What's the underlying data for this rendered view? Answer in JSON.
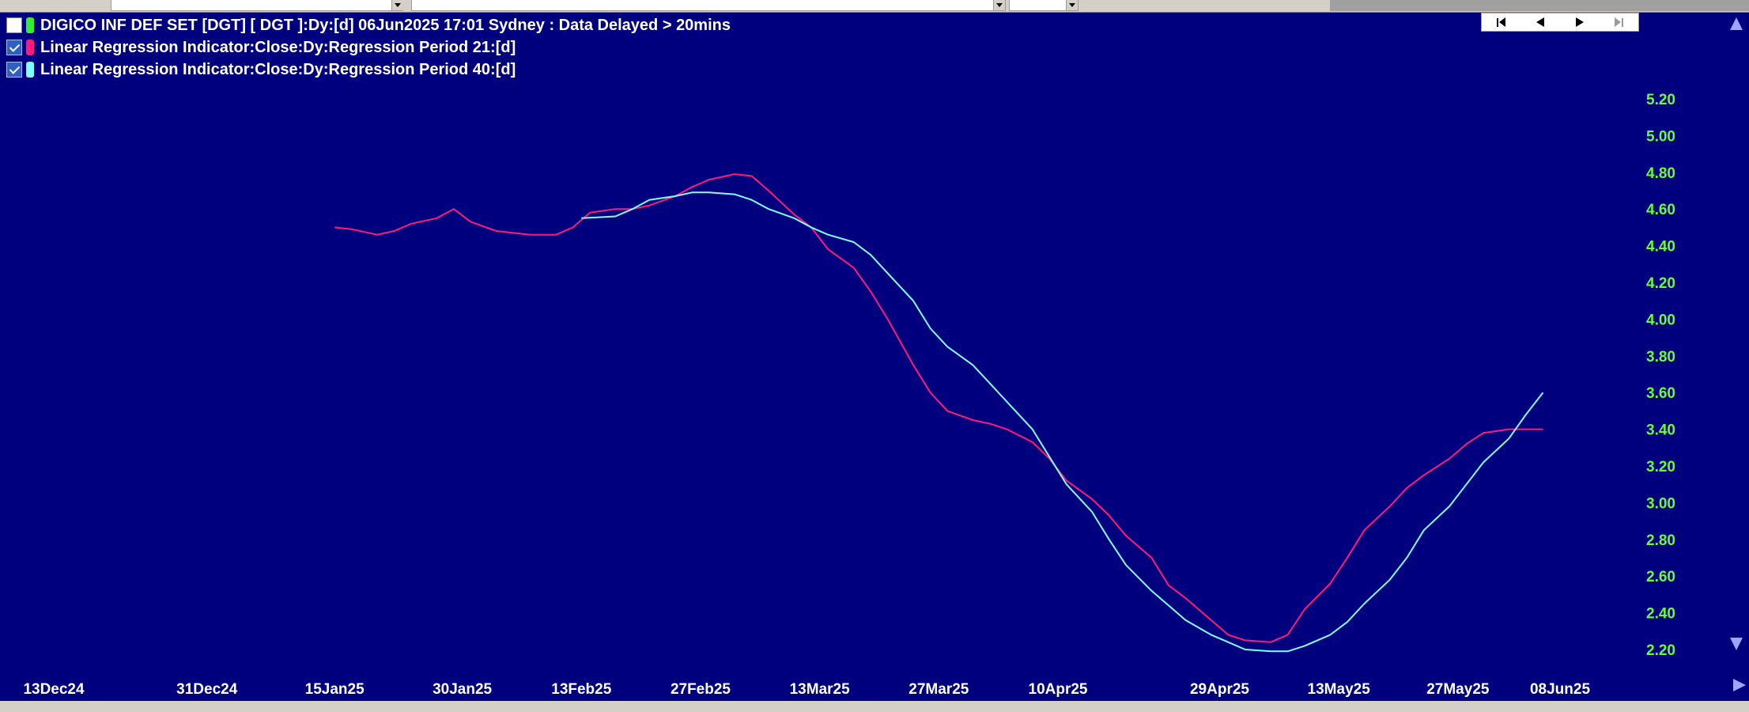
{
  "colors": {
    "background": "#00007f",
    "axis_label": "#66ff33",
    "period21": "#ff1a7a",
    "period40": "#7fffff",
    "header_swatch": "#33ee33"
  },
  "legend": {
    "header": "DIGICO INF DEF SET [DGT] [ DGT ]:Dy:[d]  06Jun2025 17:01 Sydney : Data Delayed > 20mins",
    "series": [
      "Linear Regression Indicator:Close:Dy:Regression Period 21:[d]",
      "Linear Regression Indicator:Close:Dy:Regression Period 40:[d]"
    ]
  },
  "navigator": {
    "icons": [
      "first-icon",
      "prev-icon",
      "next-icon",
      "last-icon"
    ]
  },
  "chart_data": {
    "type": "line",
    "x_tick_labels": [
      "13Dec24",
      "31Dec24",
      "15Jan25",
      "30Jan25",
      "13Feb25",
      "27Feb25",
      "13Mar25",
      "27Mar25",
      "10Apr25",
      "29Apr25",
      "13May25",
      "27May25",
      "08Jun25"
    ],
    "y_ticks": [
      "5.20",
      "5.00",
      "4.80",
      "4.60",
      "4.40",
      "4.20",
      "4.00",
      "3.80",
      "3.60",
      "3.40",
      "3.20",
      "3.00",
      "2.80",
      "2.60",
      "2.40",
      "2.20"
    ],
    "ylim": [
      2.2,
      5.2
    ],
    "series": [
      {
        "name": "Linear Regression Indicator:Close:Dy:Regression Period 21:[d]",
        "x": [
          "2025-01-15",
          "2025-01-17",
          "2025-01-20",
          "2025-01-22",
          "2025-01-24",
          "2025-01-27",
          "2025-01-29",
          "2025-01-31",
          "2025-02-03",
          "2025-02-05",
          "2025-02-07",
          "2025-02-10",
          "2025-02-12",
          "2025-02-14",
          "2025-02-17",
          "2025-02-19",
          "2025-02-21",
          "2025-02-24",
          "2025-02-26",
          "2025-02-28",
          "2025-03-03",
          "2025-03-05",
          "2025-03-07",
          "2025-03-10",
          "2025-03-12",
          "2025-03-14",
          "2025-03-17",
          "2025-03-19",
          "2025-03-21",
          "2025-03-24",
          "2025-03-26",
          "2025-03-28",
          "2025-03-31",
          "2025-04-02",
          "2025-04-04",
          "2025-04-07",
          "2025-04-09",
          "2025-04-11",
          "2025-04-14",
          "2025-04-16",
          "2025-04-18",
          "2025-04-21",
          "2025-04-23",
          "2025-04-25",
          "2025-04-28",
          "2025-04-30",
          "2025-05-02",
          "2025-05-05",
          "2025-05-07",
          "2025-05-09",
          "2025-05-12",
          "2025-05-14",
          "2025-05-16",
          "2025-05-19",
          "2025-05-21",
          "2025-05-23",
          "2025-05-26",
          "2025-05-28",
          "2025-05-30",
          "2025-06-02",
          "2025-06-04",
          "2025-06-06"
        ],
        "values": [
          4.5,
          4.49,
          4.46,
          4.48,
          4.52,
          4.55,
          4.6,
          4.53,
          4.48,
          4.47,
          4.46,
          4.46,
          4.5,
          4.58,
          4.6,
          4.6,
          4.62,
          4.67,
          4.72,
          4.76,
          4.79,
          4.78,
          4.7,
          4.57,
          4.5,
          4.38,
          4.28,
          4.15,
          4.0,
          3.75,
          3.6,
          3.5,
          3.45,
          3.43,
          3.4,
          3.33,
          3.24,
          3.12,
          3.02,
          2.93,
          2.82,
          2.7,
          2.55,
          2.48,
          2.36,
          2.28,
          2.25,
          2.24,
          2.28,
          2.42,
          2.56,
          2.7,
          2.85,
          2.98,
          3.08,
          3.15,
          3.24,
          3.32,
          3.38,
          3.4,
          3.4,
          3.4
        ]
      },
      {
        "name": "Linear Regression Indicator:Close:Dy:Regression Period 40:[d]",
        "x": [
          "2025-02-13",
          "2025-02-17",
          "2025-02-19",
          "2025-02-21",
          "2025-02-24",
          "2025-02-26",
          "2025-02-28",
          "2025-03-03",
          "2025-03-05",
          "2025-03-07",
          "2025-03-10",
          "2025-03-12",
          "2025-03-14",
          "2025-03-17",
          "2025-03-19",
          "2025-03-21",
          "2025-03-24",
          "2025-03-26",
          "2025-03-28",
          "2025-03-31",
          "2025-04-02",
          "2025-04-04",
          "2025-04-07",
          "2025-04-09",
          "2025-04-11",
          "2025-04-14",
          "2025-04-16",
          "2025-04-18",
          "2025-04-21",
          "2025-04-23",
          "2025-04-25",
          "2025-04-28",
          "2025-04-30",
          "2025-05-02",
          "2025-05-05",
          "2025-05-07",
          "2025-05-09",
          "2025-05-12",
          "2025-05-14",
          "2025-05-16",
          "2025-05-19",
          "2025-05-21",
          "2025-05-23",
          "2025-05-26",
          "2025-05-28",
          "2025-05-30",
          "2025-06-02",
          "2025-06-04",
          "2025-06-06"
        ],
        "values": [
          4.55,
          4.56,
          4.6,
          4.65,
          4.67,
          4.69,
          4.69,
          4.68,
          4.65,
          4.6,
          4.55,
          4.5,
          4.46,
          4.42,
          4.35,
          4.25,
          4.1,
          3.95,
          3.85,
          3.75,
          3.65,
          3.55,
          3.4,
          3.25,
          3.1,
          2.95,
          2.8,
          2.66,
          2.52,
          2.44,
          2.36,
          2.28,
          2.24,
          2.2,
          2.19,
          2.19,
          2.22,
          2.28,
          2.35,
          2.45,
          2.58,
          2.7,
          2.85,
          2.98,
          3.1,
          3.22,
          3.35,
          3.48,
          3.6
        ]
      }
    ]
  }
}
